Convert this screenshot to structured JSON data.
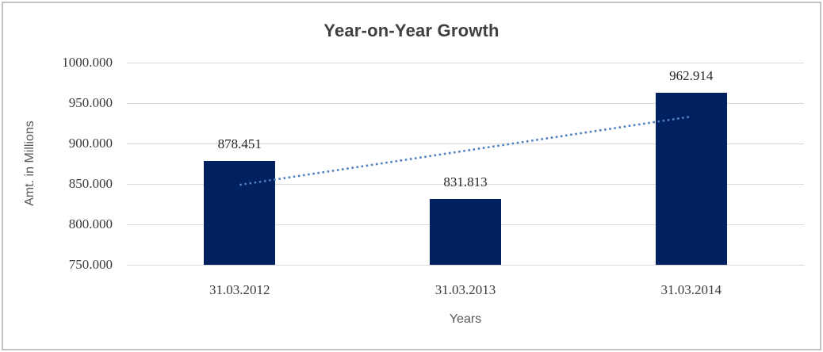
{
  "chart_data": {
    "type": "bar",
    "title": "Year-on-Year Growth",
    "xlabel": "Years",
    "ylabel": "Amt. in Millions",
    "categories": [
      "31.03.2012",
      "31.03.2013",
      "31.03.2014"
    ],
    "values": [
      878.451,
      831.813,
      962.914
    ],
    "data_labels": [
      "878.451",
      "831.813",
      "962.914"
    ],
    "ylim": [
      750,
      1000
    ],
    "yticks": [
      1000,
      950,
      900,
      850,
      800,
      750
    ],
    "ytick_labels": [
      "1000.000",
      "950.000",
      "900.000",
      "850.000",
      "800.000",
      "750.000"
    ],
    "grid": true,
    "legend": "none",
    "bar_color": "#002060",
    "gridline_color": "#d9d9d9",
    "trendline": {
      "type": "linear",
      "style": "dotted",
      "color": "#4f81bd",
      "start_value": 848.8,
      "end_value": 933.3
    }
  }
}
